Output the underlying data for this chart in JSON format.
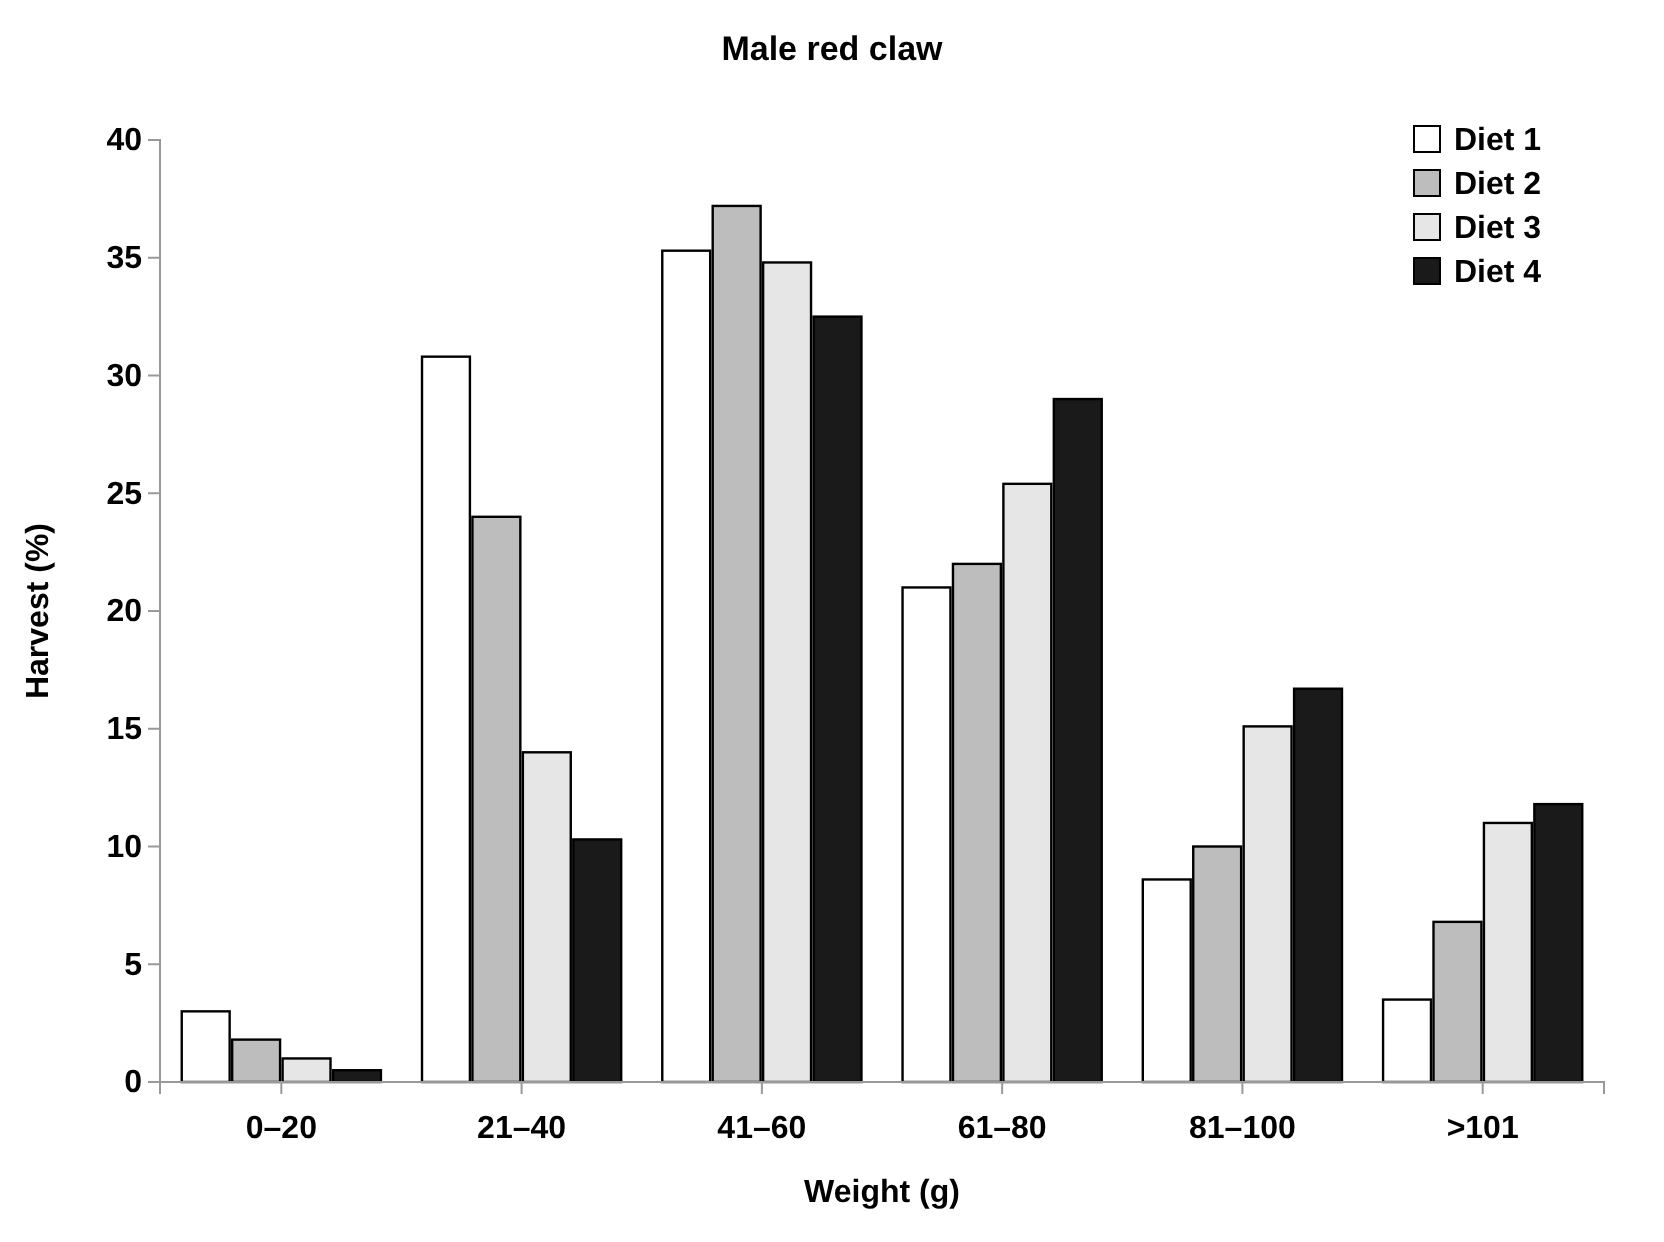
{
  "chart_data": {
    "type": "bar",
    "title": "Male red claw",
    "xlabel": "Weight (g)",
    "ylabel": "Harvest (%)",
    "categories": [
      "0–20",
      "21–40",
      "41–60",
      "61–80",
      "81–100",
      ">101"
    ],
    "series": [
      {
        "name": "Diet 1",
        "color": "#ffffff",
        "values": [
          3,
          30.8,
          35.3,
          21,
          8.6,
          3.5
        ]
      },
      {
        "name": "Diet 2",
        "color": "#bdbdbd",
        "values": [
          1.8,
          24,
          37.2,
          22,
          10,
          6.8
        ]
      },
      {
        "name": "Diet 3",
        "color": "#e6e6e6",
        "values": [
          1,
          14,
          34.8,
          25.4,
          15.1,
          11
        ]
      },
      {
        "name": "Diet 4",
        "color": "#1a1a1a",
        "values": [
          0.5,
          10.3,
          32.5,
          29,
          16.7,
          11.8
        ]
      }
    ],
    "ylim": [
      0,
      40
    ],
    "yticks": [
      0,
      5,
      10,
      15,
      20,
      25,
      30,
      35,
      40
    ],
    "grid": false,
    "legend": "top right"
  }
}
